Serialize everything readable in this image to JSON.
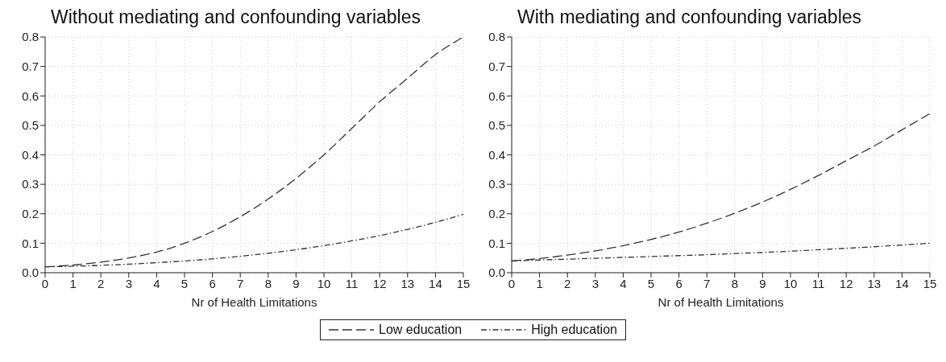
{
  "chart_data": [
    {
      "type": "line",
      "title": "Without mediating and confounding variables",
      "xlabel": "Nr of Health Limitations",
      "x": [
        0,
        1,
        2,
        3,
        4,
        5,
        6,
        7,
        8,
        9,
        10,
        11,
        12,
        13,
        14,
        15
      ],
      "series": [
        {
          "name": "Low education",
          "color": "#333333",
          "line_style": "dashed",
          "values": [
            0.02,
            0.026,
            0.036,
            0.05,
            0.07,
            0.1,
            0.14,
            0.19,
            0.25,
            0.32,
            0.4,
            0.49,
            0.58,
            0.66,
            0.74,
            0.8
          ]
        },
        {
          "name": "High education",
          "color": "#333333",
          "line_style": "dotted",
          "values": [
            0.02,
            0.022,
            0.025,
            0.029,
            0.034,
            0.04,
            0.047,
            0.056,
            0.066,
            0.078,
            0.092,
            0.108,
            0.126,
            0.147,
            0.171,
            0.198
          ]
        }
      ],
      "xlim": [
        0,
        15
      ],
      "xticks": [
        0,
        1,
        2,
        3,
        4,
        5,
        6,
        7,
        8,
        9,
        10,
        11,
        12,
        13,
        14,
        15
      ],
      "ylim": [
        0,
        0.8
      ],
      "yticks": [
        {
          "value": 0,
          "label": "0.0"
        },
        {
          "value": 0.1,
          "label": "0.1"
        },
        {
          "value": 0.2,
          "label": "0.2"
        },
        {
          "value": 0.3,
          "label": "0.3"
        },
        {
          "value": 0.4,
          "label": "0.4"
        },
        {
          "value": 0.5,
          "label": "0.5"
        },
        {
          "value": 0.6,
          "label": "0.6"
        },
        {
          "value": 0.7,
          "label": "0.7"
        },
        {
          "value": 0.8,
          "label": "0.8"
        }
      ],
      "grid": true,
      "legend": "bottom",
      "marker": "none"
    },
    {
      "type": "line",
      "title": "With mediating and confounding variables",
      "xlabel": "Nr of Health Limitations",
      "x": [
        0,
        1,
        2,
        3,
        4,
        5,
        6,
        7,
        8,
        9,
        10,
        11,
        12,
        13,
        14,
        15
      ],
      "series": [
        {
          "color": "#333333",
          "line_style": "dashed",
          "values": [
            0.04,
            0.048,
            0.06,
            0.074,
            0.092,
            0.113,
            0.138,
            0.168,
            0.202,
            0.24,
            0.283,
            0.33,
            0.38,
            0.43,
            0.485,
            0.54
          ]
        },
        {
          "color": "#333333",
          "line_style": "dotted",
          "values": [
            0.04,
            0.043,
            0.046,
            0.049,
            0.052,
            0.055,
            0.058,
            0.061,
            0.065,
            0.069,
            0.073,
            0.078,
            0.083,
            0.088,
            0.094,
            0.1
          ]
        }
      ],
      "xlim": [
        0,
        15
      ],
      "xticks": [
        0,
        1,
        2,
        3,
        4,
        5,
        6,
        7,
        8,
        9,
        10,
        11,
        12,
        13,
        14,
        15
      ],
      "ylim": [
        0,
        0.8
      ],
      "yticks": [
        {
          "value": 0,
          "label": "0.0"
        },
        {
          "value": 0.1,
          "label": "0.1"
        },
        {
          "value": 0.2,
          "label": "0.2"
        },
        {
          "value": 0.3,
          "label": "0.3"
        },
        {
          "value": 0.4,
          "label": "0.4"
        },
        {
          "value": 0.5,
          "label": "0.5"
        },
        {
          "value": 0.6,
          "label": "0.6"
        },
        {
          "value": 0.7,
          "label": "0.7"
        },
        {
          "value": 0.8,
          "label": "0.8"
        }
      ],
      "grid": true,
      "marker": "none"
    }
  ]
}
